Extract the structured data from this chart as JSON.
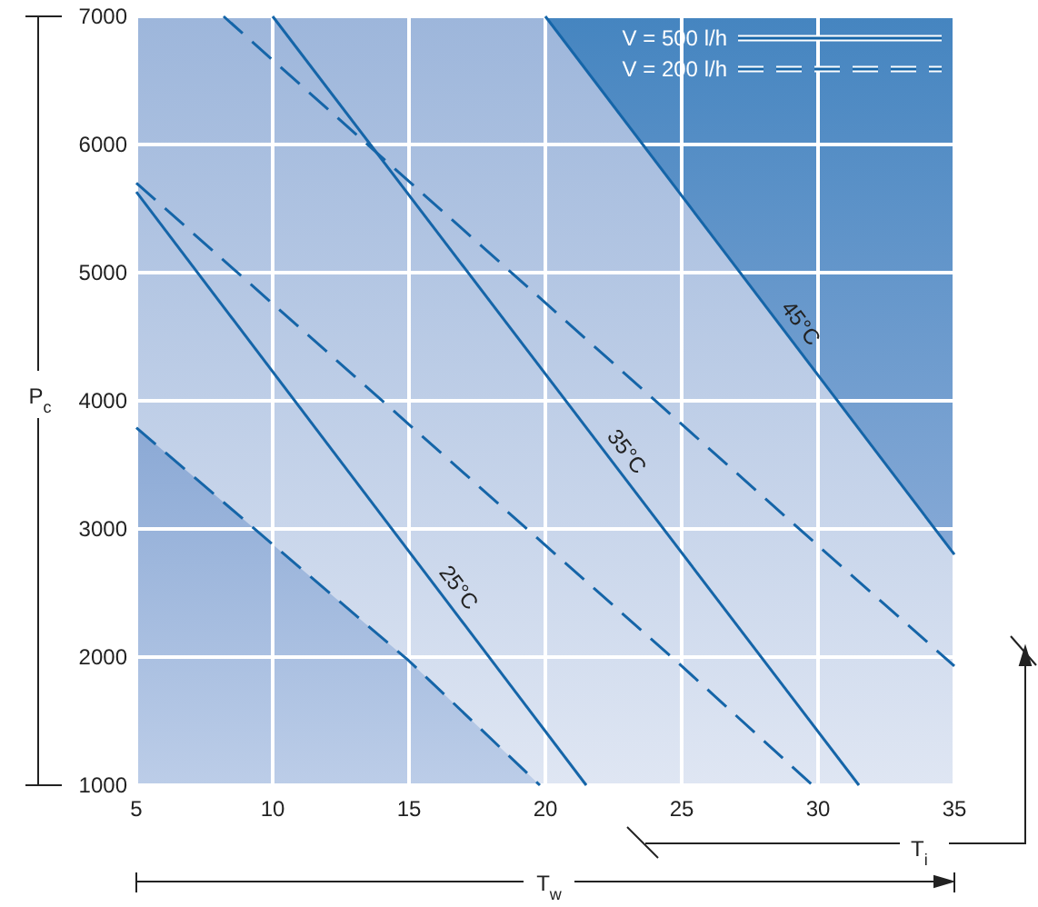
{
  "chart_data": {
    "type": "line",
    "xlabel": "T$_{w}$",
    "ylabel": "P$_{c}$",
    "xlim": [
      5,
      35
    ],
    "xticks": [
      5,
      10,
      15,
      20,
      25,
      30,
      35
    ],
    "ylim": [
      1000,
      7000
    ],
    "yticks": [
      1000,
      2000,
      3000,
      4000,
      5000,
      6000,
      7000
    ],
    "grid": true,
    "legend": "top right",
    "series": [
      {
        "name": "V = 500 l/h",
        "color": "#1565a8",
        "line_style": "solid",
        "x": [
          5,
          21.5
        ],
        "values": [
          5630,
          1000
        ]
      },
      {
        "color": "#1565a8",
        "line_style": "solid",
        "x": [
          10,
          31.5
        ],
        "values": [
          7000,
          1000
        ]
      },
      {
        "color": "#1565a8",
        "line_style": "solid",
        "x": [
          20,
          35
        ],
        "values": [
          7000,
          2800
        ]
      },
      {
        "name": "V = 200 l/h",
        "color": "#1565a8",
        "line_style": "dashed",
        "x": [
          5,
          10,
          15,
          19.8
        ],
        "values": [
          3790,
          2880,
          1970,
          1000
        ]
      },
      {
        "color": "#1565a8",
        "line_style": "dashed",
        "x": [
          5,
          25,
          29.8
        ],
        "values": [
          5700,
          1930,
          1000
        ]
      },
      {
        "color": "#1565a8",
        "line_style": "dashed",
        "x": [
          8.2,
          30,
          35
        ],
        "values": [
          7000,
          2870,
          1930
        ]
      }
    ],
    "annotations": [
      "25°C",
      "35°C",
      "45°C",
      "T$_{i}$"
    ]
  }
}
